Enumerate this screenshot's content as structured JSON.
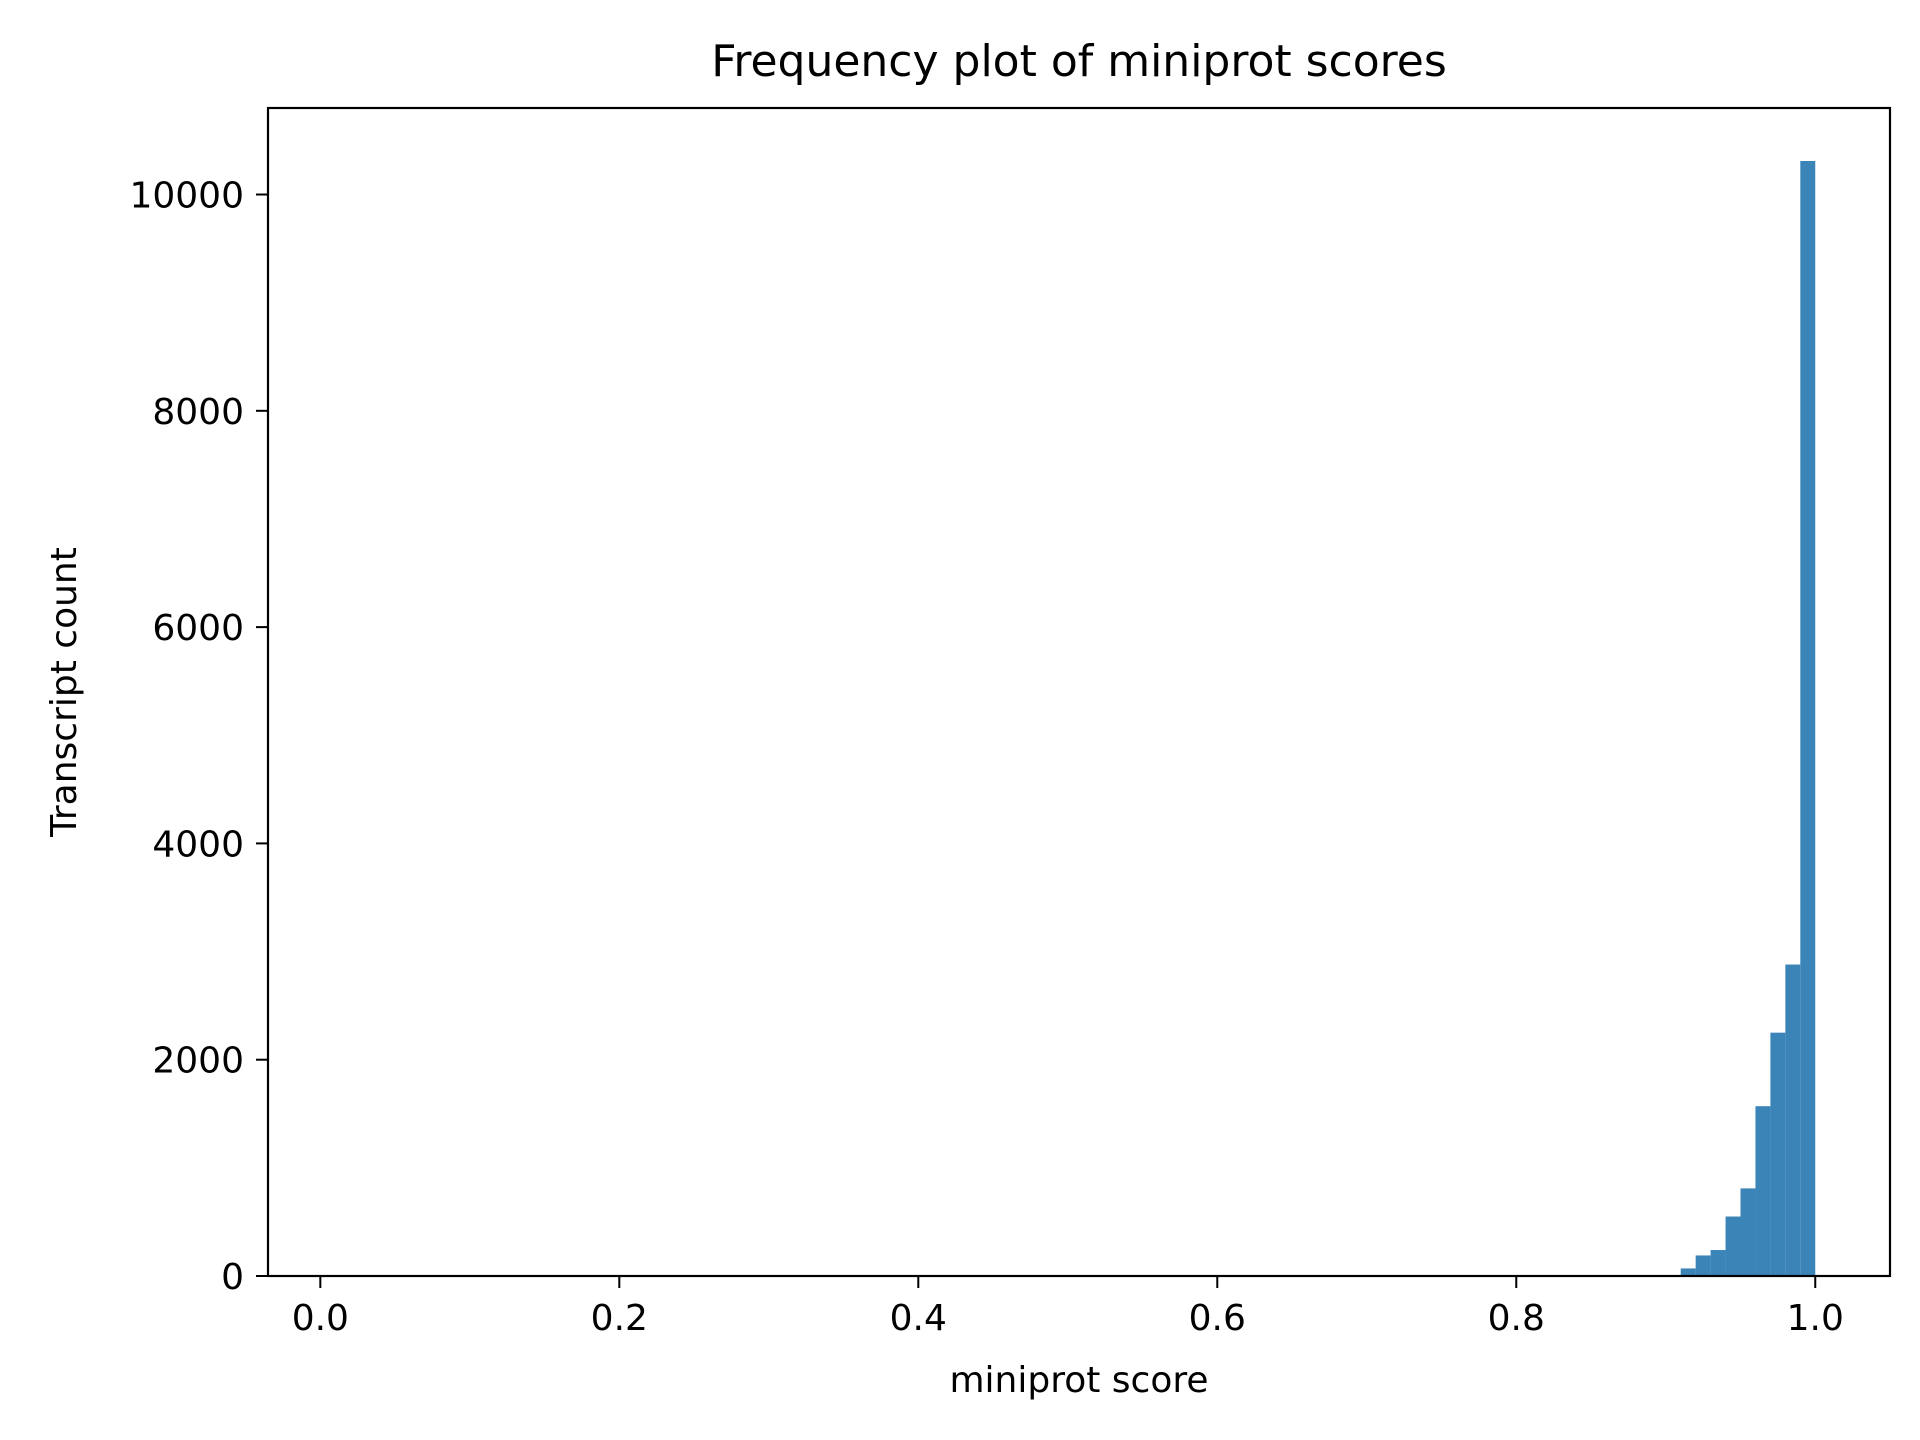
{
  "chart_data": {
    "type": "bar",
    "title": "Frequency plot of miniprot scores",
    "xlabel": "miniprot score",
    "ylabel": "Transcript count",
    "xlim": [
      -0.035,
      1.05
    ],
    "ylim": [
      0,
      10800
    ],
    "x_ticks": [
      0.0,
      0.2,
      0.4,
      0.6,
      0.8,
      1.0
    ],
    "x_tick_labels": [
      "0.0",
      "0.2",
      "0.4",
      "0.6",
      "0.8",
      "1.0"
    ],
    "y_ticks": [
      0,
      2000,
      4000,
      6000,
      8000,
      10000
    ],
    "y_tick_labels": [
      "0",
      "2000",
      "4000",
      "6000",
      "8000",
      "10000"
    ],
    "bin_width": 0.01,
    "bins_left": [
      0.91,
      0.92,
      0.93,
      0.94,
      0.95,
      0.96,
      0.97,
      0.98,
      0.99
    ],
    "values": [
      70,
      190,
      240,
      550,
      810,
      1570,
      2250,
      2880,
      10310
    ],
    "bar_color": "#3a84b8",
    "grid": false,
    "legend": null
  }
}
